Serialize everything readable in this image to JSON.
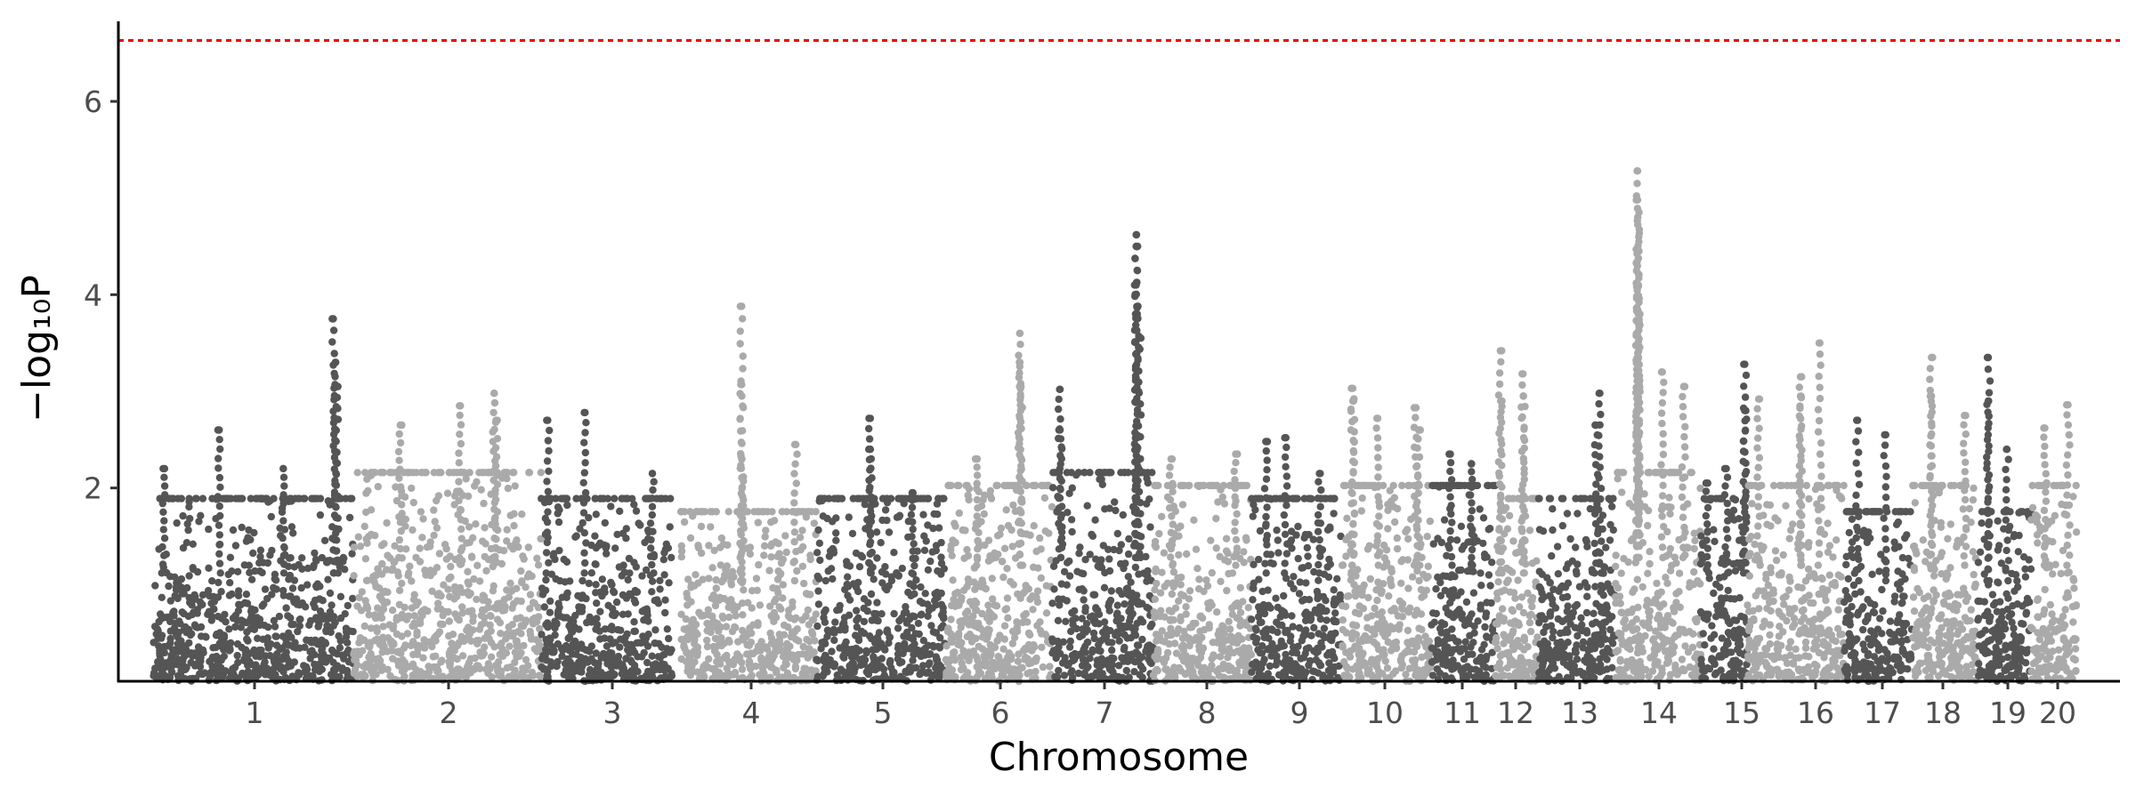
{
  "chart_data": {
    "type": "scatter",
    "subtype": "manhattan",
    "title": "",
    "xlabel": "Chromosome",
    "ylabel": "−log₁₀P",
    "ylim": [
      0,
      6.8
    ],
    "yticks": [
      2,
      4,
      6
    ],
    "grid": false,
    "legend": "none",
    "significance_line": {
      "y": 6.63,
      "color": "#ee0000",
      "style": "dotted"
    },
    "colors": {
      "dark": "#555555",
      "light": "#aaaaaa"
    },
    "x_categories": [
      "1",
      "2",
      "3",
      "4",
      "5",
      "6",
      "7",
      "8",
      "9",
      "10",
      "11",
      "12",
      "13",
      "14",
      "15",
      "16",
      "17",
      "18",
      "19",
      "20"
    ],
    "chromosomes": [
      {
        "label": "1",
        "color": "dark",
        "typical_max": 1.4,
        "top_hits": [
          {
            "x": 0.05,
            "y": 2.2
          },
          {
            "x": 0.33,
            "y": 2.6
          },
          {
            "x": 0.65,
            "y": 2.2
          },
          {
            "x": 0.9,
            "y": 3.75
          },
          {
            "x": 0.91,
            "y": 3.3
          },
          {
            "x": 0.92,
            "y": 3.05
          }
        ]
      },
      {
        "label": "2",
        "color": "light",
        "typical_max": 1.6,
        "top_hits": [
          {
            "x": 0.25,
            "y": 2.65
          },
          {
            "x": 0.57,
            "y": 2.85
          },
          {
            "x": 0.75,
            "y": 2.98
          },
          {
            "x": 0.76,
            "y": 2.7
          }
        ]
      },
      {
        "label": "3",
        "color": "dark",
        "typical_max": 1.4,
        "top_hits": [
          {
            "x": 0.05,
            "y": 2.7
          },
          {
            "x": 0.33,
            "y": 2.78
          },
          {
            "x": 0.85,
            "y": 2.15
          }
        ]
      },
      {
        "label": "4",
        "color": "light",
        "typical_max": 1.3,
        "top_hits": [
          {
            "x": 0.45,
            "y": 3.88
          },
          {
            "x": 0.45,
            "y": 3.07
          },
          {
            "x": 0.45,
            "y": 2.3
          },
          {
            "x": 0.85,
            "y": 2.45
          }
        ]
      },
      {
        "label": "5",
        "color": "dark",
        "typical_max": 1.4,
        "top_hits": [
          {
            "x": 0.42,
            "y": 2.72
          },
          {
            "x": 0.42,
            "y": 2.4
          },
          {
            "x": 0.75,
            "y": 1.95
          }
        ]
      },
      {
        "label": "6",
        "color": "light",
        "typical_max": 1.5,
        "top_hits": [
          {
            "x": 0.7,
            "y": 3.6
          },
          {
            "x": 0.7,
            "y": 3.3
          },
          {
            "x": 0.71,
            "y": 3.05
          },
          {
            "x": 0.3,
            "y": 2.3
          }
        ]
      },
      {
        "label": "7",
        "color": "dark",
        "typical_max": 1.6,
        "top_hits": [
          {
            "x": 0.83,
            "y": 4.62
          },
          {
            "x": 0.83,
            "y": 4.5
          },
          {
            "x": 0.83,
            "y": 4.1
          },
          {
            "x": 0.84,
            "y": 3.8
          },
          {
            "x": 0.86,
            "y": 3.55
          },
          {
            "x": 0.08,
            "y": 3.02
          },
          {
            "x": 0.08,
            "y": 2.6
          }
        ]
      },
      {
        "label": "8",
        "color": "light",
        "typical_max": 1.5,
        "top_hits": [
          {
            "x": 0.18,
            "y": 2.3
          },
          {
            "x": 0.84,
            "y": 2.35
          }
        ]
      },
      {
        "label": "9",
        "color": "dark",
        "typical_max": 1.4,
        "top_hits": [
          {
            "x": 0.16,
            "y": 2.48
          },
          {
            "x": 0.38,
            "y": 2.52
          },
          {
            "x": 0.75,
            "y": 2.15
          }
        ]
      },
      {
        "label": "10",
        "color": "light",
        "typical_max": 1.5,
        "top_hits": [
          {
            "x": 0.12,
            "y": 3.03
          },
          {
            "x": 0.12,
            "y": 2.9
          },
          {
            "x": 0.4,
            "y": 2.72
          },
          {
            "x": 0.83,
            "y": 2.83
          },
          {
            "x": 0.86,
            "y": 2.6
          }
        ]
      },
      {
        "label": "11",
        "color": "dark",
        "typical_max": 1.5,
        "top_hits": [
          {
            "x": 0.3,
            "y": 2.35
          },
          {
            "x": 0.63,
            "y": 2.25
          }
        ]
      },
      {
        "label": "12",
        "color": "light",
        "typical_max": 1.4,
        "top_hits": [
          {
            "x": 0.12,
            "y": 3.42
          },
          {
            "x": 0.13,
            "y": 2.9
          },
          {
            "x": 0.65,
            "y": 3.18
          },
          {
            "x": 0.66,
            "y": 2.95
          }
        ]
      },
      {
        "label": "13",
        "color": "dark",
        "typical_max": 1.4,
        "top_hits": [
          {
            "x": 0.8,
            "y": 2.98
          },
          {
            "x": 0.75,
            "y": 2.65
          }
        ]
      },
      {
        "label": "14",
        "color": "light",
        "typical_max": 1.6,
        "top_hits": [
          {
            "x": 0.26,
            "y": 5.28
          },
          {
            "x": 0.26,
            "y": 4.98
          },
          {
            "x": 0.26,
            "y": 4.8
          },
          {
            "x": 0.26,
            "y": 4.45
          },
          {
            "x": 0.27,
            "y": 4.1
          },
          {
            "x": 0.27,
            "y": 3.8
          },
          {
            "x": 0.55,
            "y": 3.2
          },
          {
            "x": 0.8,
            "y": 3.05
          }
        ]
      },
      {
        "label": "15",
        "color": "dark",
        "typical_max": 1.4,
        "top_hits": [
          {
            "x": 0.15,
            "y": 2.05
          },
          {
            "x": 0.55,
            "y": 2.2
          },
          {
            "x": 0.95,
            "y": 3.28
          },
          {
            "x": 0.95,
            "y": 2.8
          }
        ]
      },
      {
        "label": "16",
        "color": "light",
        "typical_max": 1.5,
        "top_hits": [
          {
            "x": 0.12,
            "y": 2.92
          },
          {
            "x": 0.55,
            "y": 3.15
          },
          {
            "x": 0.55,
            "y": 2.95
          },
          {
            "x": 0.75,
            "y": 3.5
          }
        ]
      },
      {
        "label": "17",
        "color": "dark",
        "typical_max": 1.3,
        "top_hits": [
          {
            "x": 0.2,
            "y": 2.7
          },
          {
            "x": 0.6,
            "y": 2.55
          }
        ]
      },
      {
        "label": "18",
        "color": "light",
        "typical_max": 1.5,
        "top_hits": [
          {
            "x": 0.3,
            "y": 3.35
          },
          {
            "x": 0.3,
            "y": 2.95
          },
          {
            "x": 0.8,
            "y": 2.75
          }
        ]
      },
      {
        "label": "19",
        "color": "dark",
        "typical_max": 1.3,
        "top_hits": [
          {
            "x": 0.2,
            "y": 3.35
          },
          {
            "x": 0.2,
            "y": 2.9
          },
          {
            "x": 0.55,
            "y": 2.4
          }
        ]
      },
      {
        "label": "20",
        "color": "light",
        "typical_max": 1.5,
        "top_hits": [
          {
            "x": 0.3,
            "y": 2.62
          },
          {
            "x": 0.8,
            "y": 2.86
          }
        ]
      }
    ]
  }
}
